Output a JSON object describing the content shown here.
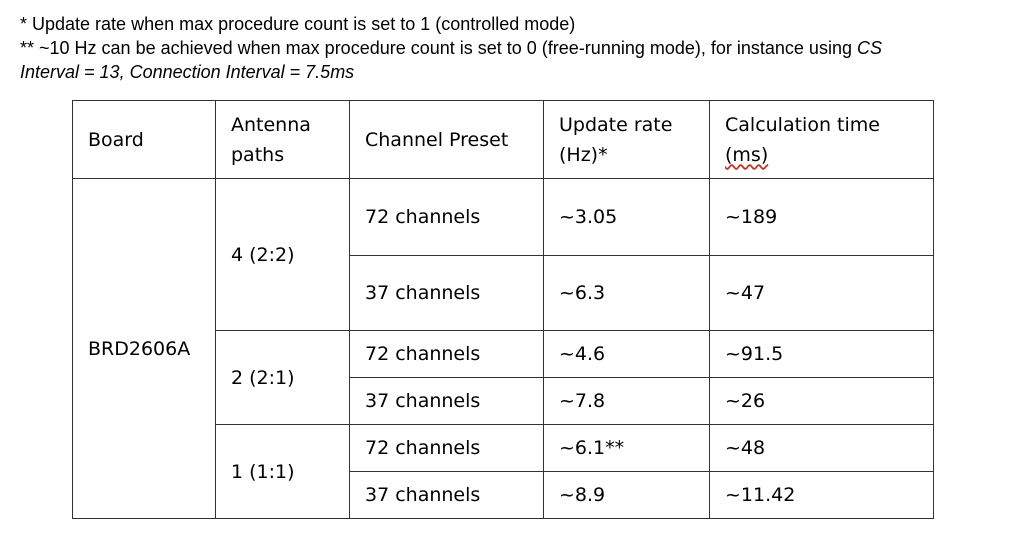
{
  "notes": {
    "note1": "* Update rate when max procedure count is set to 1 (controlled mode)",
    "note2_prefix": "** ~10 Hz can be achieved when max procedure count is set to 0 (free-running mode), for instance using ",
    "note2_italic_line1": "CS",
    "note2_italic_line2": "Interval = 13, Connection Interval = 7.5ms"
  },
  "table": {
    "headers": {
      "board": "Board",
      "antenna_line1": "Antenna",
      "antenna_line2": "paths",
      "preset": "Channel Preset",
      "rate_line1": "Update rate",
      "rate_line2": "(Hz)*",
      "calc_line1": "Calculation time",
      "calc_line2_unit": "(ms)"
    },
    "board": "BRD2606A",
    "groups": [
      {
        "antenna": "4 (2:2)",
        "rows": [
          {
            "preset": "72 channels",
            "rate": "~3.05",
            "calc": "~189"
          },
          {
            "preset": "37 channels",
            "rate": "~6.3",
            "calc": "~47"
          }
        ]
      },
      {
        "antenna": "2 (2:1)",
        "rows": [
          {
            "preset": "72 channels",
            "rate": "~4.6",
            "calc": "~91.5"
          },
          {
            "preset": "37 channels",
            "rate": "~7.8",
            "calc": "~26"
          }
        ]
      },
      {
        "antenna": "1 (1:1)",
        "rows": [
          {
            "preset": "72 channels",
            "rate": "~6.1**",
            "calc": "~48"
          },
          {
            "preset": "37 channels",
            "rate": "~8.9",
            "calc": "~11.42"
          }
        ]
      }
    ]
  }
}
